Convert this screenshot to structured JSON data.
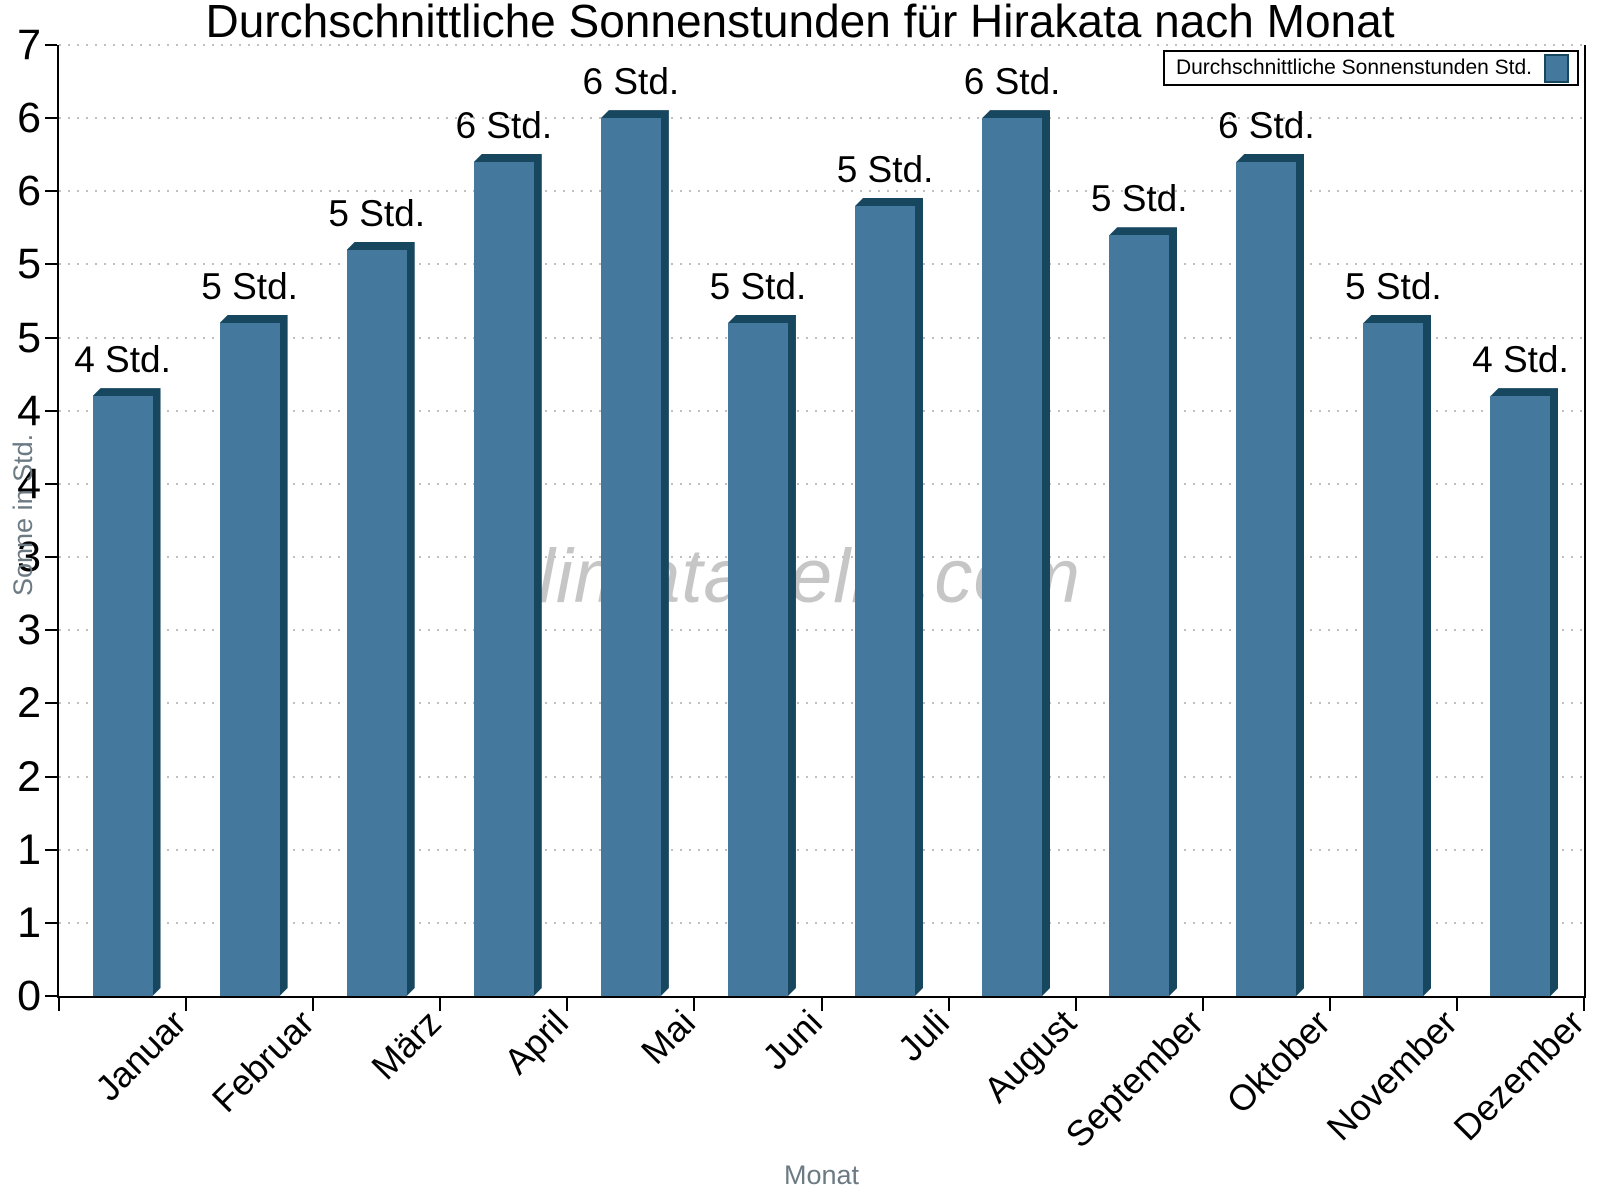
{
  "watermark": "klimatabelle.com",
  "chart_data": {
    "type": "bar",
    "title": "Durchschnittliche Sonnenstunden für Hirakata nach Monat",
    "xlabel": "Monat",
    "ylabel": "Sonne in Std.",
    "legend": "Durchschnittliche Sonnenstunden Std.",
    "legend_position": "top-right",
    "categories": [
      "Januar",
      "Februar",
      "März",
      "April",
      "Mai",
      "Juni",
      "Juli",
      "August",
      "September",
      "Oktober",
      "November",
      "Dezember"
    ],
    "values": [
      4.1,
      4.6,
      5.1,
      5.7,
      6.0,
      4.6,
      5.4,
      6.0,
      5.2,
      5.7,
      4.6,
      4.1
    ],
    "bar_labels": [
      "4 Std.",
      "5 Std.",
      "5 Std.",
      "6 Std.",
      "6 Std.",
      "5 Std.",
      "5 Std.",
      "6 Std.",
      "5 Std.",
      "6 Std.",
      "5 Std.",
      "4 Std."
    ],
    "unit": "Std.",
    "ylim": [
      0,
      6.5
    ],
    "ytick_step": 0.5,
    "ytick_labels_bottom_to_top": [
      "0",
      "1",
      "1",
      "2",
      "2",
      "3",
      "3",
      "4",
      "4",
      "5",
      "5",
      "6",
      "6",
      "7"
    ],
    "grid": "dotted horizontal",
    "colors": {
      "bar_face": "#45789D",
      "bar_shadow": "#17465F",
      "axis": "#000000",
      "grid": "#BFBFBF",
      "muted_text": "#6C7A84",
      "watermark": "#C6C6C6"
    }
  }
}
